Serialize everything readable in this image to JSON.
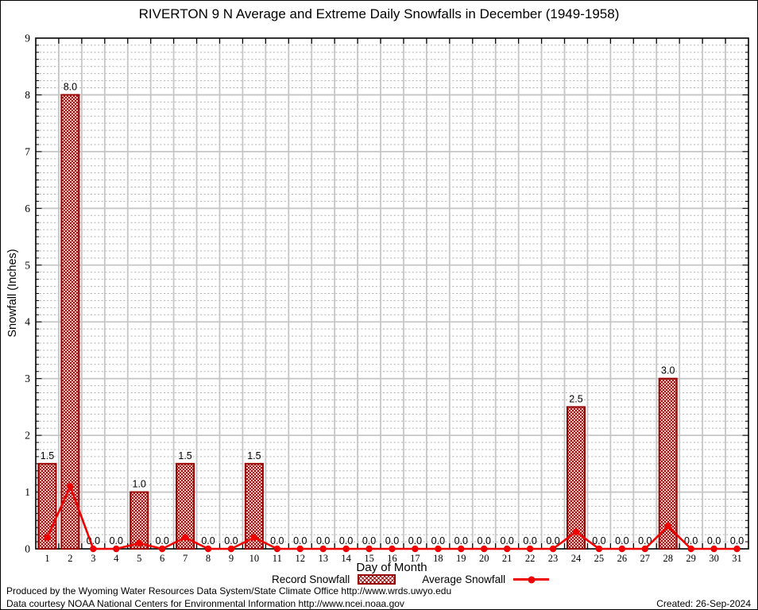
{
  "chart_data": {
    "type": "bar",
    "title": "RIVERTON 9 N Average and Extreme Daily Snowfalls in December (1949-1958)",
    "xlabel": "Day of Month",
    "ylabel": "Snowfall (Inches)",
    "x": [
      1,
      2,
      3,
      4,
      5,
      6,
      7,
      8,
      9,
      10,
      11,
      12,
      13,
      14,
      15,
      16,
      17,
      18,
      19,
      20,
      21,
      22,
      23,
      24,
      25,
      26,
      27,
      28,
      29,
      30,
      31
    ],
    "ylim": [
      0,
      9
    ],
    "yticks": [
      0,
      1,
      2,
      3,
      4,
      5,
      6,
      7,
      8,
      9
    ],
    "grid": true,
    "legend_position": "bottom",
    "bar_value_labels": true,
    "series": [
      {
        "name": "Record Snowfall",
        "type": "bar",
        "color": "#990000",
        "values": [
          1.5,
          8.0,
          0.0,
          0.0,
          1.0,
          0.0,
          1.5,
          0.0,
          0.0,
          1.5,
          0.0,
          0.0,
          0.0,
          0.0,
          0.0,
          0.0,
          0.0,
          0.0,
          0.0,
          0.0,
          0.0,
          0.0,
          0.0,
          2.5,
          0.0,
          0.0,
          0.0,
          3.0,
          0.0,
          0.0,
          0.0
        ]
      },
      {
        "name": "Average Snowfall",
        "type": "line",
        "color": "#ee0000",
        "values": [
          0.2,
          1.1,
          0.0,
          0.0,
          0.1,
          0.0,
          0.2,
          0.0,
          0.0,
          0.2,
          0.0,
          0.0,
          0.0,
          0.0,
          0.0,
          0.0,
          0.0,
          0.0,
          0.0,
          0.0,
          0.0,
          0.0,
          0.0,
          0.3,
          0.0,
          0.0,
          0.0,
          0.4,
          0.0,
          0.0,
          0.0
        ]
      }
    ]
  },
  "legend": {
    "record": "Record Snowfall",
    "average": "Average Snowfall"
  },
  "footer": {
    "produced": "Produced by the Wyoming Water Resources Data System/State Climate Office http://www.wrds.uwyo.edu",
    "courtesy": "Data courtesy NOAA National Centers for Environmental Information http://www.ncei.noaa.gov",
    "created": "Created: 26-Sep-2024"
  },
  "colors": {
    "bar_outline": "#990000",
    "line": "#ee0000",
    "grid_major": "#c6c6c6",
    "grid_minor": "#b0b0b0",
    "axis": "#000000",
    "text": "#000000"
  }
}
